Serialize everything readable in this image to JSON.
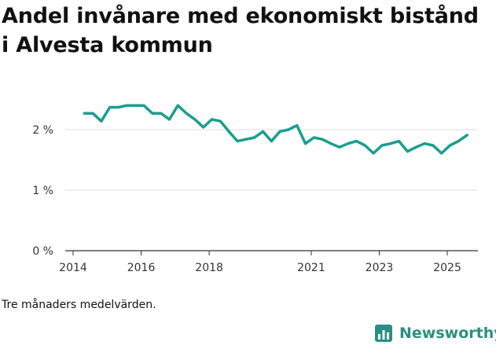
{
  "title": "Andel invånare med ekonomiskt bistånd i Alvesta kommun",
  "footnote": "Tre månaders medelvärden.",
  "brand": {
    "name": "Newsworthy",
    "icon": "bar-chart-logo-icon"
  },
  "colors": {
    "line": "#1a9e8f",
    "grid": "#dddddd",
    "axis": "#333333",
    "brand": "#2a8f82"
  },
  "chart_data": {
    "type": "line",
    "title": "Andel invånare med ekonomiskt bistånd i Alvesta kommun",
    "xlabel": "",
    "ylabel": "",
    "ylim": [
      0,
      3
    ],
    "xlim": [
      2014.0,
      2025.9
    ],
    "grid": true,
    "y_ticks": [
      {
        "value": 0,
        "label": "0 %"
      },
      {
        "value": 1,
        "label": "1 %"
      },
      {
        "value": 2,
        "label": "2 %"
      }
    ],
    "x_ticks": [
      {
        "value": 2014,
        "label": "2014"
      },
      {
        "value": 2016,
        "label": "2016"
      },
      {
        "value": 2018,
        "label": "2018"
      },
      {
        "value": 2021,
        "label": "2021"
      },
      {
        "value": 2023,
        "label": "2023"
      },
      {
        "value": 2025,
        "label": "2025"
      }
    ],
    "series": [
      {
        "name": "Andel invånare med ekonomiskt bistånd",
        "x": [
          2014.33,
          2014.58,
          2014.83,
          2015.08,
          2015.33,
          2015.58,
          2015.83,
          2016.08,
          2016.33,
          2016.58,
          2016.83,
          2017.08,
          2017.33,
          2017.58,
          2017.83,
          2018.08,
          2018.33,
          2018.58,
          2018.83,
          2019.08,
          2019.33,
          2019.58,
          2019.83,
          2020.08,
          2020.33,
          2020.58,
          2020.83,
          2021.08,
          2021.33,
          2021.58,
          2021.83,
          2022.08,
          2022.33,
          2022.58,
          2022.83,
          2023.08,
          2023.33,
          2023.58,
          2023.83,
          2024.08,
          2024.33,
          2024.58,
          2024.83,
          2025.08,
          2025.33,
          2025.58
        ],
        "values": [
          2.27,
          2.27,
          2.14,
          2.37,
          2.37,
          2.4,
          2.4,
          2.4,
          2.27,
          2.27,
          2.17,
          2.4,
          2.27,
          2.17,
          2.04,
          2.17,
          2.14,
          1.97,
          1.81,
          1.84,
          1.87,
          1.97,
          1.81,
          1.97,
          2.0,
          2.07,
          1.77,
          1.87,
          1.84,
          1.77,
          1.71,
          1.77,
          1.81,
          1.74,
          1.61,
          1.74,
          1.77,
          1.81,
          1.64,
          1.71,
          1.77,
          1.74,
          1.61,
          1.74,
          1.81,
          1.91
        ]
      }
    ]
  }
}
